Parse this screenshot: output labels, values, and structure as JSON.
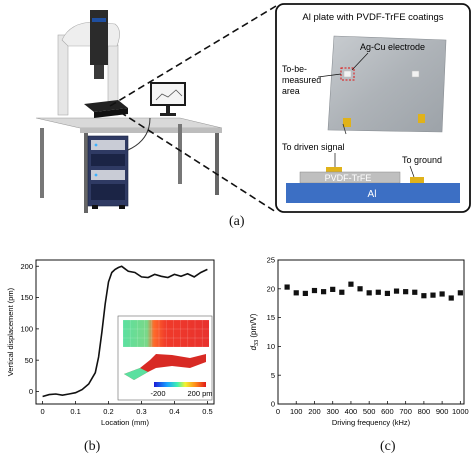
{
  "panel_a": {
    "label": "(a)",
    "inset": {
      "title": "Al plate with PVDF-TrFE coatings",
      "electrode_label": "Ag-Cu electrode",
      "measured_area_label": [
        "To-be-",
        "measured",
        "area"
      ],
      "driven_signal_label": "To driven signal",
      "ground_label": "To ground",
      "film_label": "PVDF-TrFE",
      "substrate_label": "Al"
    }
  },
  "panel_b": {
    "label": "(b)",
    "colorbar_min": "-200",
    "colorbar_max": "200 pm"
  },
  "panel_c": {
    "label": "(c)"
  },
  "chart_data": [
    {
      "id": "b",
      "type": "line",
      "xlabel": "Location (mm)",
      "ylabel": "Vertical displacement (pm)",
      "xlim": [
        -0.02,
        0.52
      ],
      "ylim": [
        -20,
        210
      ],
      "xticks": [
        0,
        0.1,
        0.2,
        0.3,
        0.4,
        0.5
      ],
      "xtick_labels": [
        "0",
        "0.1",
        "0.2",
        "0.3",
        "0.4",
        "0.5"
      ],
      "yticks": [
        0,
        50,
        100,
        150,
        200
      ],
      "ytick_labels": [
        "0",
        "50",
        "100",
        "150",
        "200"
      ],
      "x": [
        0,
        0.02,
        0.04,
        0.06,
        0.08,
        0.1,
        0.12,
        0.14,
        0.16,
        0.17,
        0.18,
        0.19,
        0.2,
        0.21,
        0.22,
        0.23,
        0.24,
        0.25,
        0.26,
        0.28,
        0.3,
        0.32,
        0.34,
        0.36,
        0.38,
        0.4,
        0.42,
        0.44,
        0.46,
        0.48,
        0.5
      ],
      "y": [
        -8,
        -5,
        -4,
        -6,
        -4,
        -2,
        3,
        12,
        30,
        55,
        95,
        140,
        175,
        190,
        195,
        198,
        200,
        196,
        192,
        190,
        183,
        182,
        187,
        184,
        182,
        187,
        184,
        188,
        183,
        190,
        195
      ]
    },
    {
      "id": "c",
      "type": "scatter",
      "xlabel": "Driving frequency (kHz)",
      "ylabel_main": "d",
      "ylabel_sub": "33",
      "ylabel_unit": " (pm/V)",
      "xlim": [
        0,
        1020
      ],
      "ylim": [
        0,
        25
      ],
      "xticks": [
        0,
        100,
        200,
        300,
        400,
        500,
        600,
        700,
        800,
        900,
        1000
      ],
      "xtick_labels": [
        "0",
        "100",
        "200",
        "300",
        "400",
        "500",
        "600",
        "700",
        "800",
        "900",
        "1000"
      ],
      "yticks": [
        0,
        5,
        10,
        15,
        20,
        25
      ],
      "ytick_labels": [
        "0",
        "5",
        "10",
        "15",
        "20",
        "25"
      ],
      "x": [
        50,
        100,
        150,
        200,
        250,
        300,
        350,
        400,
        450,
        500,
        550,
        600,
        650,
        700,
        750,
        800,
        850,
        900,
        950,
        1000
      ],
      "y": [
        20.3,
        19.3,
        19.2,
        19.7,
        19.5,
        19.9,
        19.4,
        20.8,
        20.0,
        19.3,
        19.4,
        19.2,
        19.6,
        19.5,
        19.4,
        18.8,
        18.9,
        19.1,
        18.4,
        19.3
      ]
    }
  ]
}
